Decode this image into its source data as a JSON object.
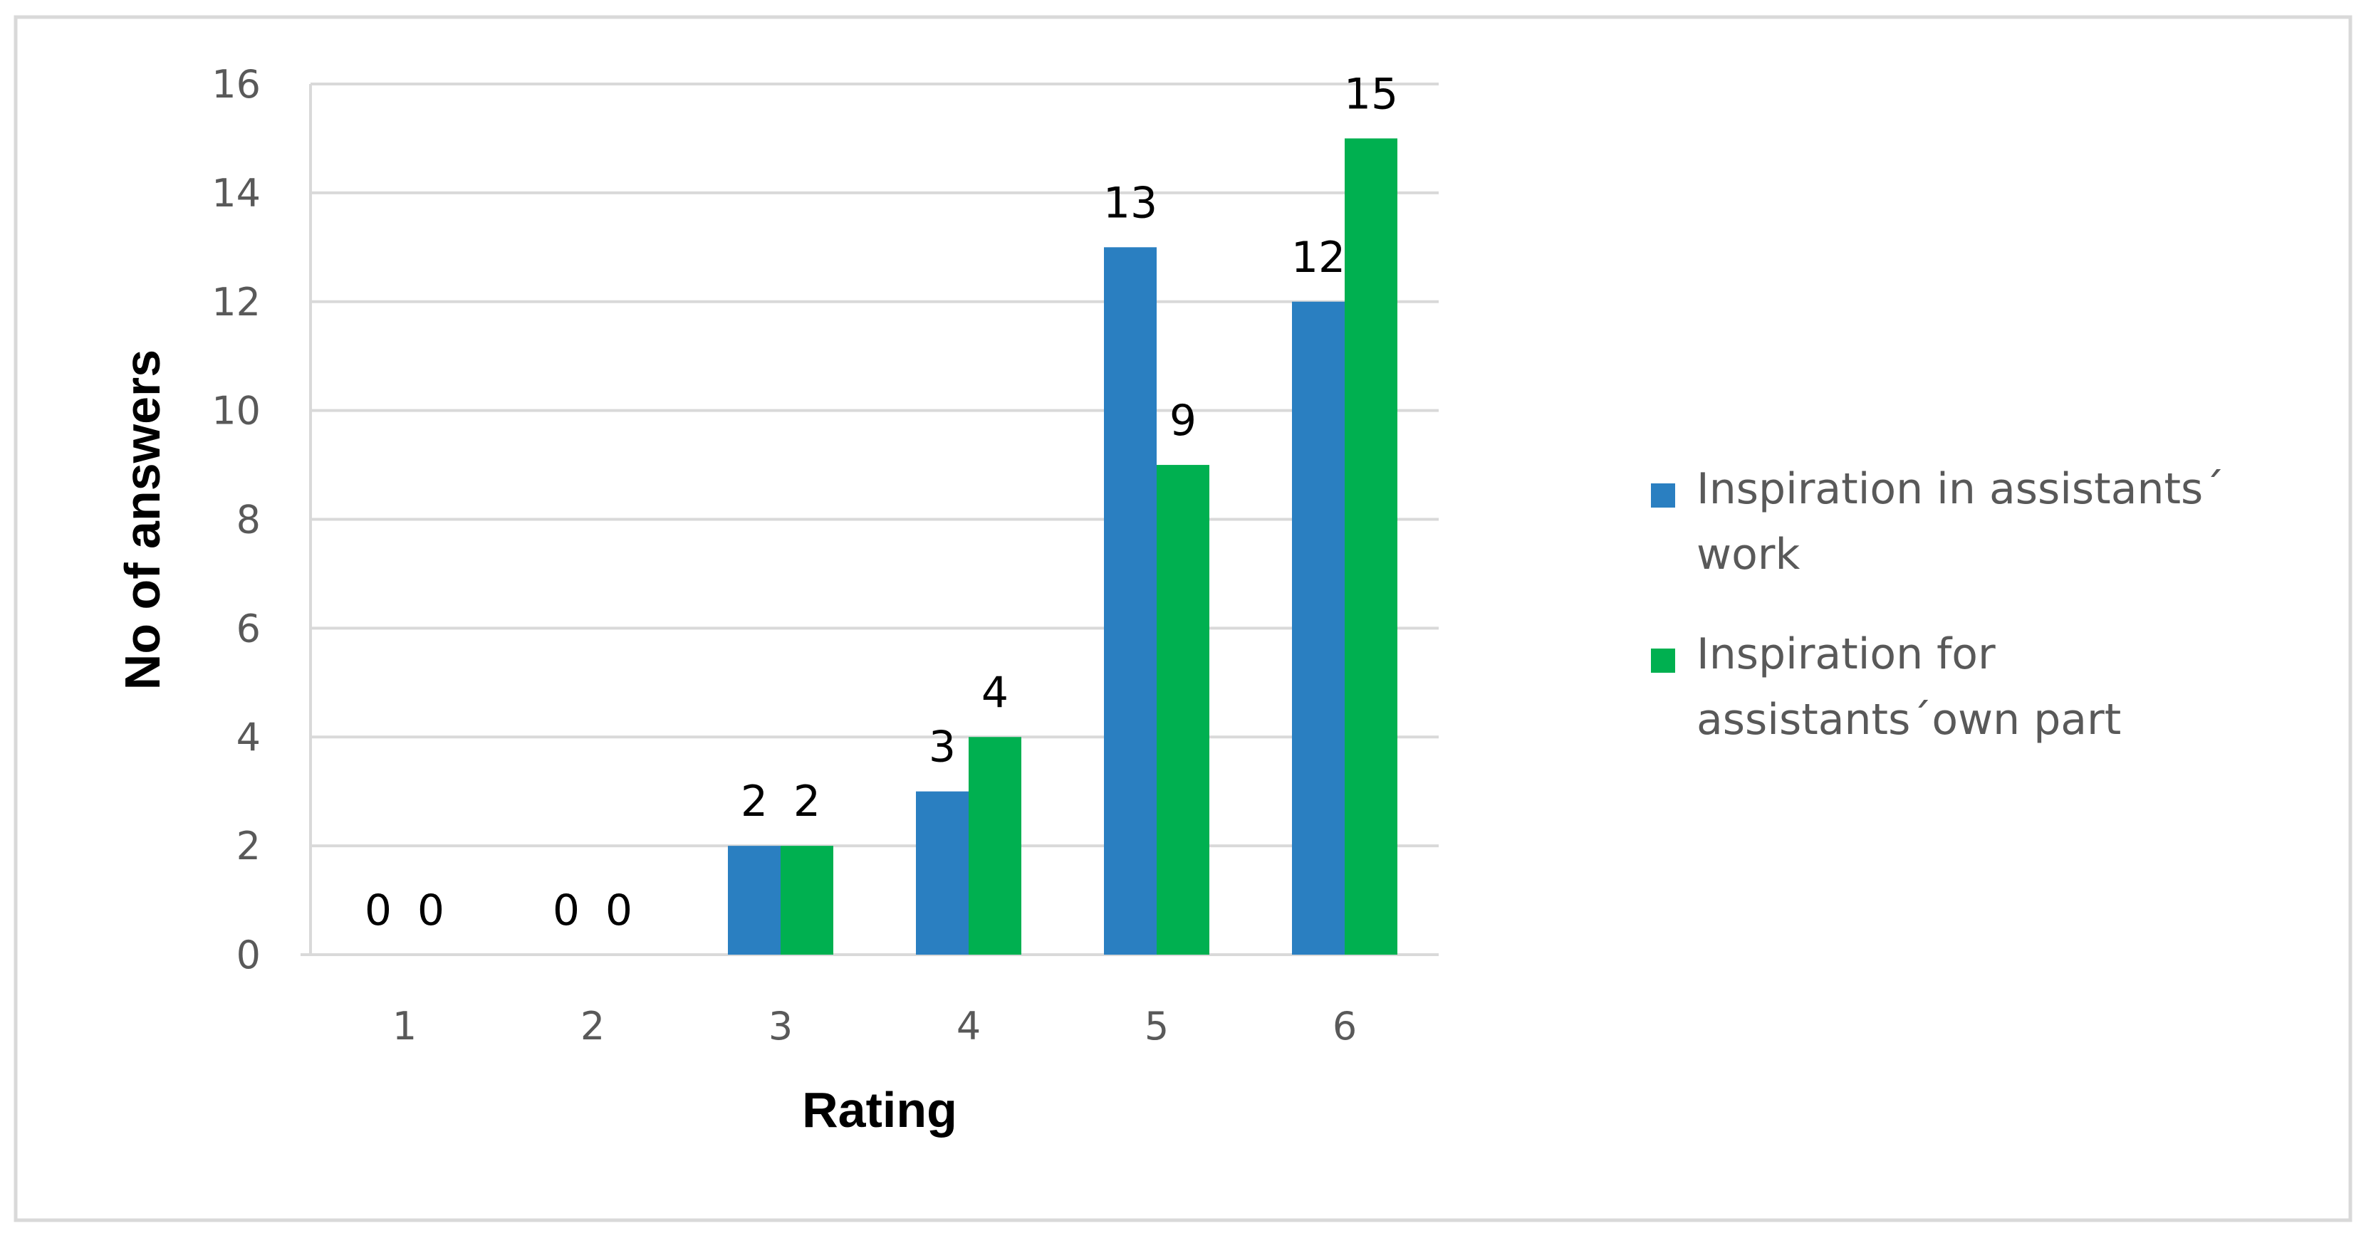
{
  "chart_data": {
    "type": "bar",
    "title": "",
    "xlabel": "Rating",
    "ylabel": "No of answers",
    "categories": [
      "1",
      "2",
      "3",
      "4",
      "5",
      "6"
    ],
    "series": [
      {
        "name": "Inspiration in assistants´ work",
        "legend_lines": [
          "Inspiration in assistants´",
          "work"
        ],
        "color": "#2a7fc1",
        "values": [
          0,
          0,
          2,
          3,
          13,
          12
        ]
      },
      {
        "name": "Inspiration for assistants´own part",
        "legend_lines": [
          "Inspiration for",
          "assistants´own part"
        ],
        "color": "#00b050",
        "values": [
          0,
          0,
          2,
          4,
          9,
          15
        ]
      }
    ],
    "ylim": [
      0,
      16
    ],
    "yticks": [
      0,
      2,
      4,
      6,
      8,
      10,
      12,
      14,
      16
    ],
    "grid": true,
    "legend_position": "right",
    "data_labels": true
  },
  "colors": {
    "gridline": "#d9d9d9",
    "frame": "#d9d9d9",
    "axis_text": "#595959"
  }
}
